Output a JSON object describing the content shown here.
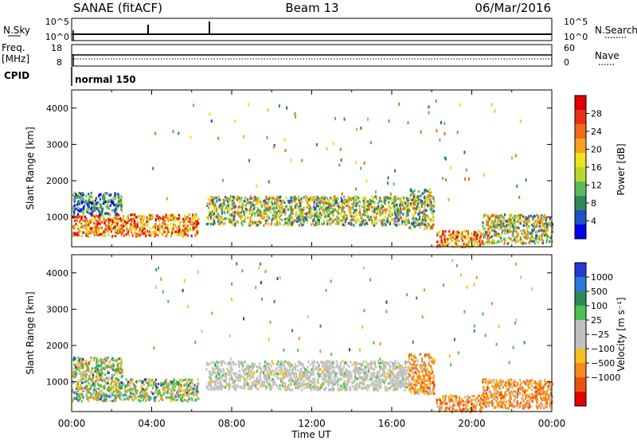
{
  "header": {
    "station": "SANAE (fitACF)",
    "beam": "Beam 13",
    "date": "06/Mar/2016"
  },
  "top_panels": {
    "nsky_label": "N.Sky",
    "nsky_ticks": [
      "10^5",
      "10^0"
    ],
    "nsearch_label": "N.Search",
    "nsearch_ticks": [
      "10^5",
      "10^0"
    ],
    "freq_label": "Freq.",
    "freq_unit": "[MHz]",
    "freq_ticks": [
      "18",
      "8"
    ],
    "nave_label": "Nave",
    "nave_ticks": [
      "60",
      "0"
    ],
    "cpid_label": "CPID",
    "cpid_value": "normal 150"
  },
  "x_axis": {
    "label": "Time UT",
    "ticks": [
      "00:00",
      "04:00",
      "08:00",
      "12:00",
      "16:00",
      "20:00",
      "00:00"
    ]
  },
  "colors": {
    "power": [
      "#0000ee",
      "#1e50c8",
      "#2e8b57",
      "#5cb85c",
      "#b8d830",
      "#f0e020",
      "#f5a020",
      "#ee6a18",
      "#e83010",
      "#dd0000"
    ],
    "velocity_pos": [
      "#1e3ad0",
      "#2a7adc",
      "#2e8b57",
      "#4cc050"
    ],
    "velocity_zero": "#c0c0c0",
    "velocity_neg": [
      "#f5c020",
      "#f58a20",
      "#ee5010",
      "#e00000"
    ]
  },
  "chart_data": [
    {
      "type": "heatmap",
      "quantity": "Power",
      "ylabel": "Slant Range [km]",
      "xlabel": "",
      "ylim": [
        180,
        4500
      ],
      "xlim": [
        0,
        24
      ],
      "yticks": [
        1000,
        2000,
        3000,
        4000
      ],
      "colorbar": {
        "label": "Power [dB]",
        "ticks": [
          "4",
          "8",
          "12",
          "16",
          "20",
          "24",
          "28"
        ]
      },
      "scatter_regions": [
        {
          "t0": 0.0,
          "t1": 6.3,
          "r0": 500,
          "r1": 1100,
          "level": "high"
        },
        {
          "t0": 0.0,
          "t1": 2.5,
          "r0": 1100,
          "r1": 1700,
          "level": "low"
        },
        {
          "t0": 6.7,
          "t1": 16.8,
          "r0": 800,
          "r1": 1600,
          "level": "mid"
        },
        {
          "t0": 16.8,
          "t1": 18.1,
          "r0": 700,
          "r1": 1800,
          "level": "mid"
        },
        {
          "t0": 18.2,
          "t1": 20.6,
          "r0": 200,
          "r1": 650,
          "level": "high"
        },
        {
          "t0": 20.5,
          "t1": 24.0,
          "r0": 300,
          "r1": 1100,
          "level": "mid"
        }
      ]
    },
    {
      "type": "heatmap",
      "quantity": "Velocity",
      "ylabel": "Slant Range [km]",
      "xlabel": "Time UT",
      "ylim": [
        180,
        4500
      ],
      "xlim": [
        0,
        24
      ],
      "yticks": [
        1000,
        2000,
        3000,
        4000
      ],
      "colorbar": {
        "label": "Velocity [m s⁻¹]",
        "ticks": [
          "1000",
          "500",
          "100",
          "25",
          "−25",
          "−100",
          "−500",
          "−1000"
        ]
      },
      "scatter_regions": [
        {
          "t0": 0.0,
          "t1": 6.3,
          "r0": 500,
          "r1": 1100,
          "level": "mixed"
        },
        {
          "t0": 0.0,
          "t1": 2.5,
          "r0": 1100,
          "r1": 1700,
          "level": "mixed"
        },
        {
          "t0": 6.7,
          "t1": 16.8,
          "r0": 800,
          "r1": 1600,
          "level": "zero"
        },
        {
          "t0": 16.8,
          "t1": 18.1,
          "r0": 700,
          "r1": 1800,
          "level": "neg"
        },
        {
          "t0": 18.2,
          "t1": 20.6,
          "r0": 200,
          "r1": 650,
          "level": "neg"
        },
        {
          "t0": 20.5,
          "t1": 24.0,
          "r0": 300,
          "r1": 1100,
          "level": "neg"
        }
      ]
    }
  ]
}
